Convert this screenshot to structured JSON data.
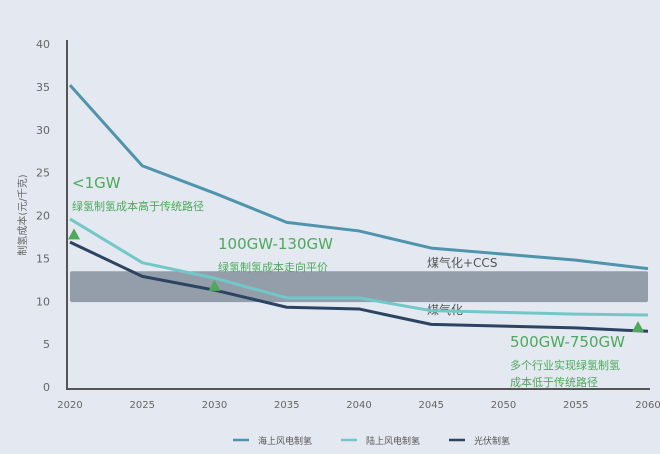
{
  "chart_data": {
    "type": "line",
    "title": "",
    "xlabel": "",
    "ylabel": "制氢成本(元/千克)",
    "ylim": [
      0,
      40
    ],
    "yticks": [
      0,
      5,
      10,
      15,
      20,
      25,
      30,
      35,
      40
    ],
    "x": [
      2020,
      2025,
      2030,
      2035,
      2040,
      2045,
      2050,
      2055,
      2060
    ],
    "grid": false,
    "legend_position": "bottom",
    "series": [
      {
        "name": "海上风电制氢",
        "color": "#4f94ad",
        "values": [
          35.2,
          25.8,
          22.6,
          19.2,
          18.2,
          16.2,
          15.5,
          14.8,
          13.8
        ]
      },
      {
        "name": "陆上风电制氢",
        "color": "#72c8c8",
        "values": [
          19.6,
          14.5,
          12.7,
          10.4,
          10.4,
          8.9,
          8.7,
          8.5,
          8.4
        ]
      },
      {
        "name": "光伏制氢",
        "color": "#2c4461",
        "values": [
          16.9,
          12.9,
          11.3,
          9.3,
          9.1,
          7.3,
          7.1,
          6.9,
          6.5
        ]
      }
    ],
    "band": {
      "low": 9.9,
      "high": 13.5,
      "color": "#939eaa",
      "label_top": "煤气化+CCS",
      "label_bottom": "煤气化"
    },
    "markers": [
      {
        "x": 2020,
        "y": 17.8,
        "title": "<1GW",
        "lines": [
          "绿氢制氢成本高于传统路径"
        ]
      },
      {
        "x": 2030,
        "y": 11.8,
        "title": "100GW-130GW",
        "lines": [
          "绿氢制氢成本走向平价"
        ]
      },
      {
        "x": 2060,
        "y": 7.0,
        "title": "500GW-750GW",
        "lines": [
          "多个行业实现绿氢制氢",
          "成本低于传统路径"
        ]
      }
    ],
    "marker_color": "#4caa5a"
  }
}
